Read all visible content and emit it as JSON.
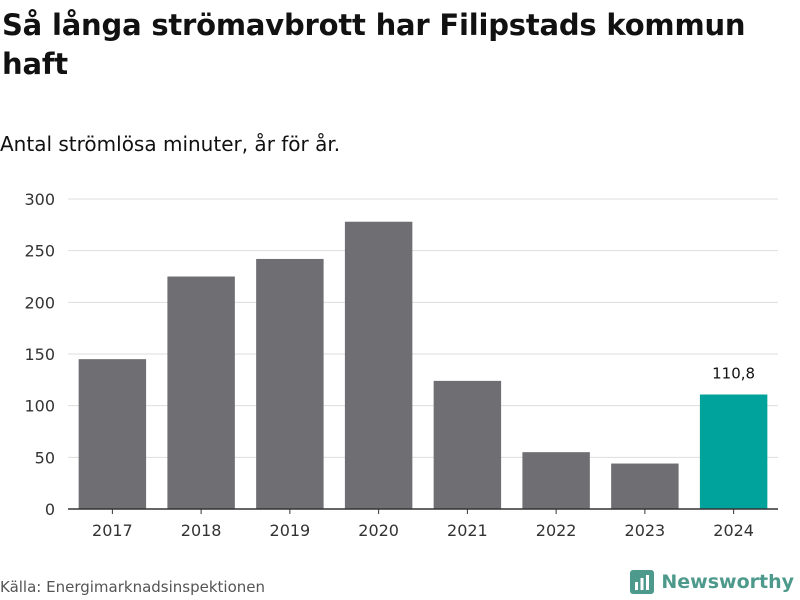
{
  "title": "Så långa strömavbrott har Filipstads kommun haft",
  "subtitle": "Antal strömlösa minuter, år för år.",
  "source": "Källa: Energimarknadsinspektionen",
  "brand": {
    "name": "Newsworthy",
    "icon": "bar-chart-icon",
    "color": "#4d9a8c"
  },
  "colors": {
    "bar_default": "#6f6e73",
    "bar_highlight": "#00a39b",
    "grid": "#dddddd",
    "axis": "#333333",
    "tick_text": "#333333"
  },
  "chart_data": {
    "type": "bar",
    "title": "Så långa strömavbrott har Filipstads kommun haft",
    "subtitle": "Antal strömlösa minuter, år för år.",
    "xlabel": "",
    "ylabel": "",
    "categories": [
      "2017",
      "2018",
      "2019",
      "2020",
      "2021",
      "2022",
      "2023",
      "2024"
    ],
    "values": [
      145,
      225,
      242,
      278,
      124,
      55,
      44,
      110.8
    ],
    "highlight_index": 7,
    "data_labels": [
      {
        "index": 7,
        "text": "110,8"
      }
    ],
    "ylim": [
      0,
      300
    ],
    "yticks": [
      0,
      50,
      100,
      150,
      200,
      250,
      300
    ],
    "ytick_labels": [
      "0",
      "50",
      "100",
      "150",
      "200",
      "250",
      "300"
    ],
    "grid": true,
    "legend": "none"
  }
}
